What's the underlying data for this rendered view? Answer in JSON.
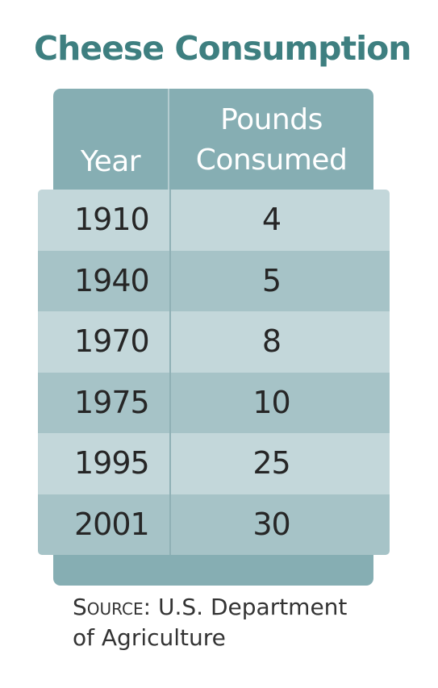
{
  "title": "Cheese Consumption",
  "source": {
    "label": "Source:",
    "line1": "U.S. Department",
    "line2": "of Agriculture"
  },
  "colors": {
    "title": "#3e7f80",
    "header": "#86aeb3",
    "row_light": "#c3d7da",
    "row_dark": "#a6c3c7"
  },
  "chart_data": {
    "type": "table",
    "title": "Cheese Consumption",
    "columns": [
      "Year",
      "Pounds Consumed"
    ],
    "header_lines": {
      "year": [
        "Year"
      ],
      "pounds": [
        "Pounds",
        "Consumed"
      ]
    },
    "rows": [
      {
        "year": "1910",
        "pounds": "4"
      },
      {
        "year": "1940",
        "pounds": "5"
      },
      {
        "year": "1970",
        "pounds": "8"
      },
      {
        "year": "1975",
        "pounds": "10"
      },
      {
        "year": "1995",
        "pounds": "25"
      },
      {
        "year": "2001",
        "pounds": "30"
      }
    ]
  }
}
